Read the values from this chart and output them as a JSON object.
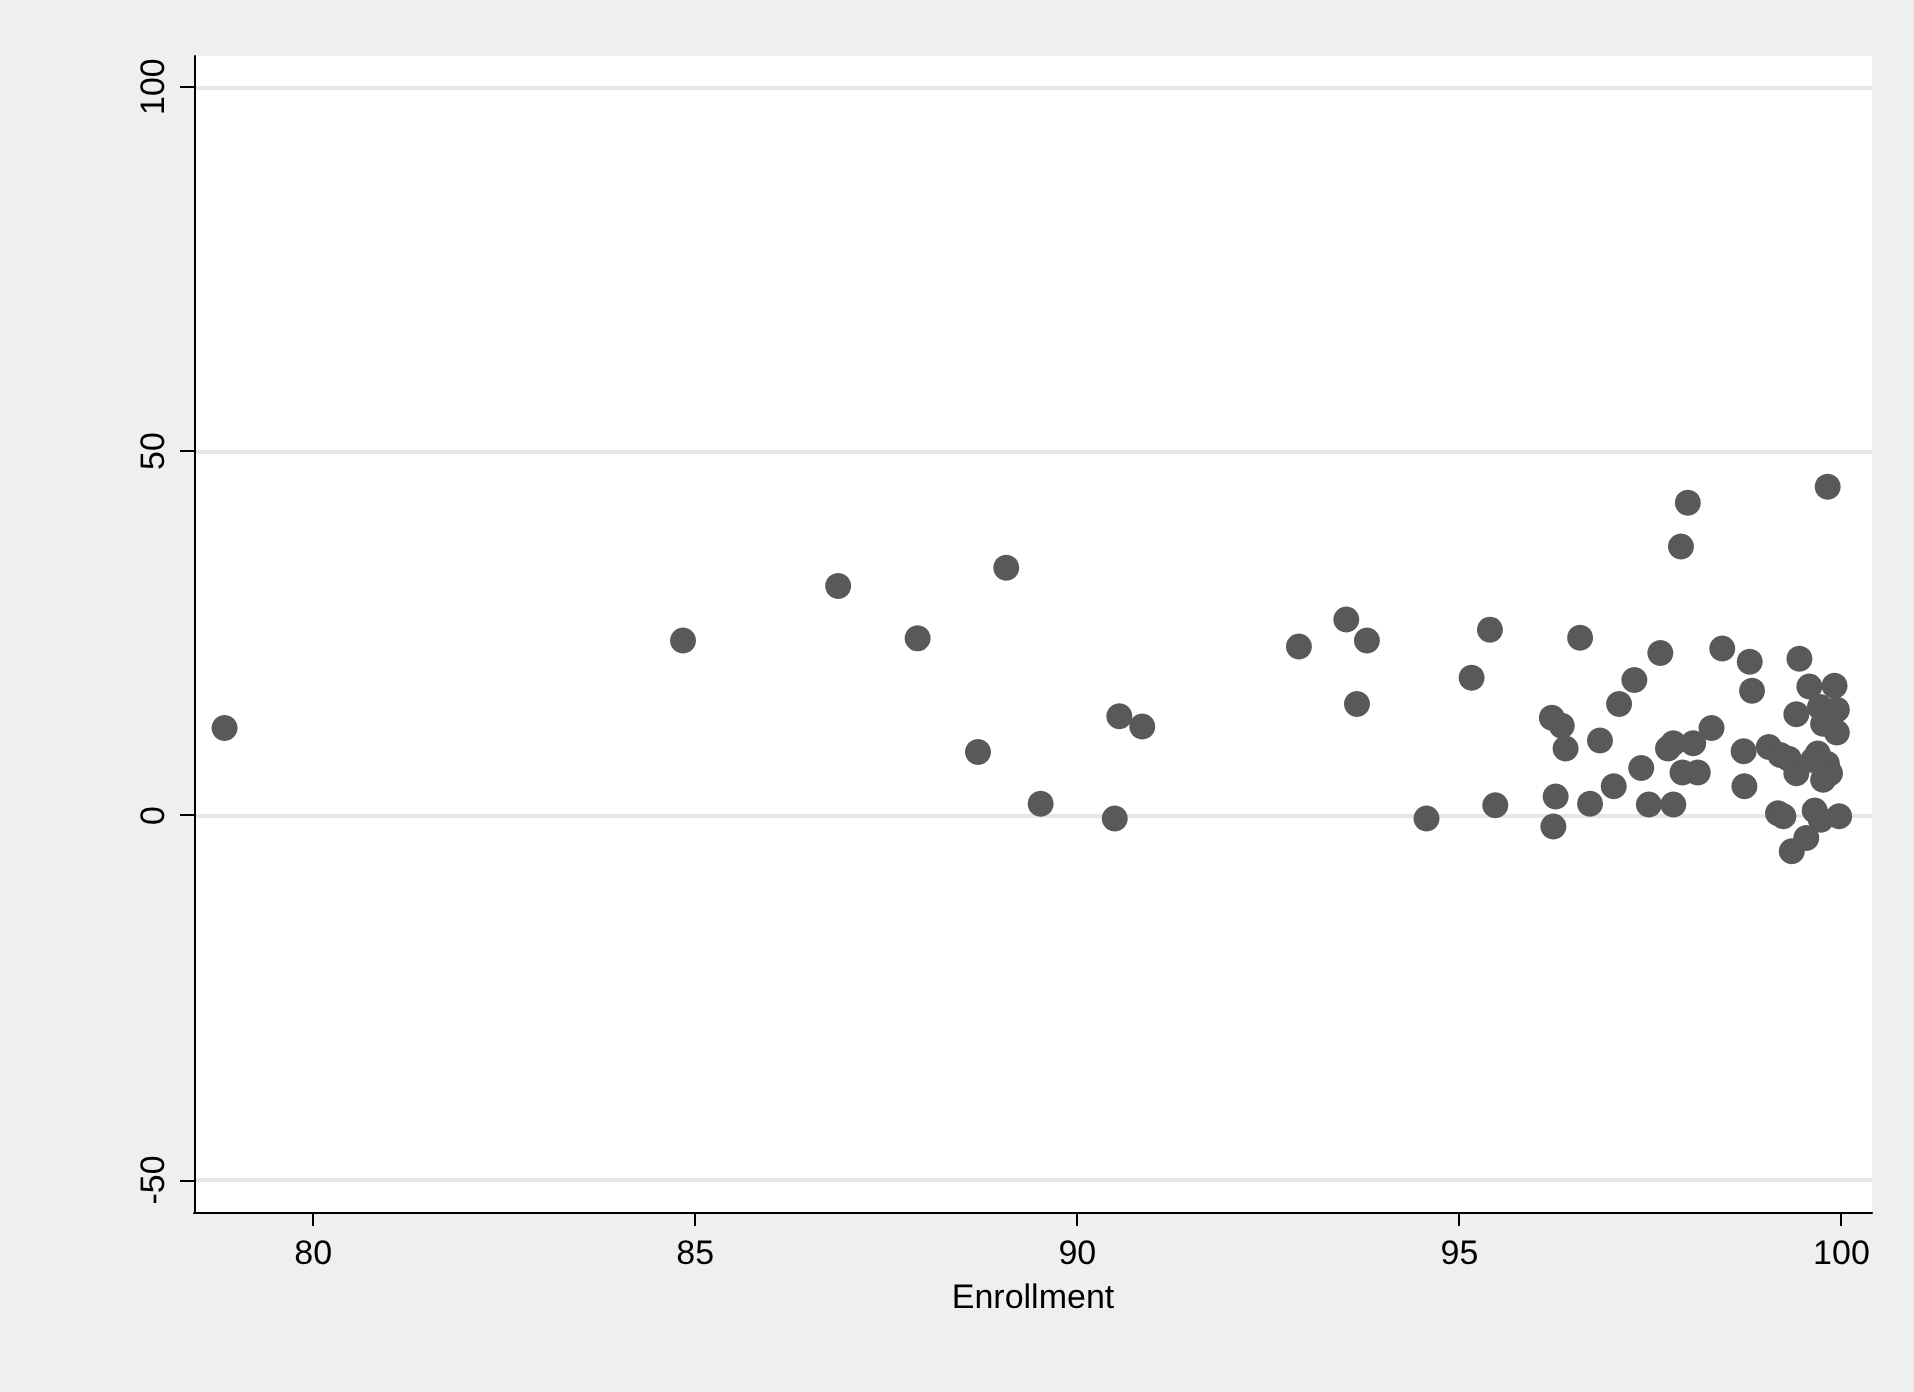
{
  "chart_data": {
    "type": "scatter",
    "xlabel": "Enrollment",
    "xlim": [
      78.44,
      100.4
    ],
    "xticks": [
      80,
      85,
      90,
      95,
      100
    ],
    "ylim": [
      -54.4,
      104.2
    ],
    "yticks": [
      -50,
      0,
      50,
      100
    ],
    "grid": "y",
    "marker": "circle",
    "series": [
      {
        "color": "#595959",
        "x": [
          78.84,
          84.84,
          86.87,
          89.07,
          87.91,
          88.7,
          89.52,
          90.49,
          90.55,
          90.85,
          92.9,
          93.52,
          93.79,
          93.66,
          94.57,
          95.4,
          95.16,
          95.47,
          96.58,
          96.21,
          96.34,
          96.39,
          96.26,
          96.23,
          96.71,
          96.84,
          97.02,
          97.09,
          97.29,
          97.38,
          97.63,
          97.48,
          97.8,
          97.73,
          97.8,
          97.9,
          97.99,
          97.92,
          98.12,
          98.06,
          98.3,
          98.44,
          98.8,
          98.83,
          98.72,
          98.73,
          99.05,
          99.2,
          99.31,
          99.17,
          99.24,
          99.35,
          99.54,
          99.41,
          99.41,
          99.45,
          99.58,
          99.65,
          99.73,
          99.97,
          99.91,
          99.72,
          99.94,
          99.76,
          99.94,
          99.69,
          99.81,
          99.85,
          99.76,
          99.63,
          99.82
        ],
        "values": [
          12.0,
          24.0,
          31.5,
          34.0,
          24.3,
          8.7,
          1.6,
          -0.4,
          13.6,
          12.2,
          23.2,
          26.9,
          24.0,
          15.3,
          -0.4,
          25.5,
          18.9,
          1.4,
          24.4,
          13.4,
          12.3,
          9.2,
          2.6,
          -1.5,
          1.6,
          10.3,
          4.0,
          15.3,
          18.6,
          6.5,
          22.3,
          1.5,
          1.5,
          9.2,
          9.9,
          36.9,
          42.9,
          5.9,
          5.9,
          9.9,
          12.0,
          22.9,
          21.1,
          17.1,
          8.8,
          4.0,
          9.4,
          8.3,
          7.8,
          0.3,
          -0.1,
          -4.9,
          -3.1,
          5.8,
          13.9,
          21.5,
          17.7,
          0.7,
          -0.6,
          -0.1,
          17.8,
          14.9,
          14.5,
          12.6,
          11.4,
          8.5,
          7.1,
          5.8,
          4.9,
          7.6,
          45.1
        ]
      }
    ]
  }
}
